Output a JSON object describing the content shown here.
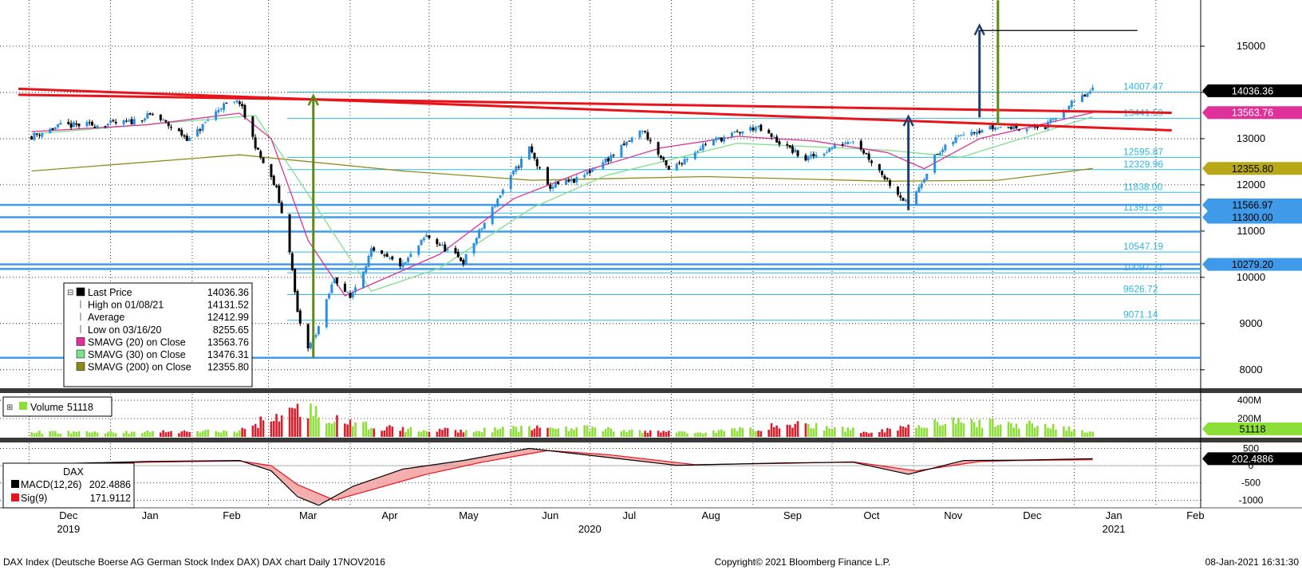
{
  "colors": {
    "background": "#ffffff",
    "grid": "#000000",
    "up_candle": "#2a8fe0",
    "down_candle": "#000000",
    "volume_up": "#8ede3a",
    "volume_down": "#d81e2a",
    "trendline_red": "#e8131b",
    "support_blue": "#3f9bea",
    "fib_blue": "#2fb8e6",
    "sma20": "#e0309a",
    "sma30": "#7ee08a",
    "sma200": "#8e8a1a",
    "arrow_green": "#5a8a10",
    "arrow_navy": "#1f3f6e",
    "macd": "#000000",
    "sig": "#e8131b",
    "macd_fill": "#f2a0a0"
  },
  "chart_data": [
    {
      "name": "price",
      "type": "candlestick",
      "y_ticks": [
        8000,
        9000,
        10000,
        11000,
        12000,
        13000,
        14000,
        15000
      ],
      "y_tick_labels": [
        "8000",
        "9000",
        "10000",
        "11000",
        "12000",
        "13000",
        "14000",
        "15000"
      ],
      "ylim": [
        7600,
        16000
      ],
      "x_months": [
        "Dec",
        "Jan",
        "Feb",
        "Mar",
        "Apr",
        "May",
        "Jun",
        "Jul",
        "Aug",
        "Sep",
        "Oct",
        "Nov",
        "Dec",
        "Jan",
        "Feb"
      ],
      "x_years": [
        "2019",
        "2020",
        "2021"
      ],
      "price_series": [
        {
          "date": "2019-12-02",
          "value": 13050
        },
        {
          "date": "2019-12-13",
          "value": 13280
        },
        {
          "date": "2019-12-27",
          "value": 13300
        },
        {
          "date": "2020-01-08",
          "value": 13350
        },
        {
          "date": "2020-01-17",
          "value": 13520
        },
        {
          "date": "2020-01-31",
          "value": 12980
        },
        {
          "date": "2020-02-12",
          "value": 13700
        },
        {
          "date": "2020-02-19",
          "value": 13790
        },
        {
          "date": "2020-02-26",
          "value": 12700
        },
        {
          "date": "2020-03-04",
          "value": 11900
        },
        {
          "date": "2020-03-09",
          "value": 10600
        },
        {
          "date": "2020-03-12",
          "value": 9200
        },
        {
          "date": "2020-03-16",
          "value": 8440
        },
        {
          "date": "2020-03-20",
          "value": 8930
        },
        {
          "date": "2020-03-26",
          "value": 10000
        },
        {
          "date": "2020-04-01",
          "value": 9550
        },
        {
          "date": "2020-04-09",
          "value": 10560
        },
        {
          "date": "2020-04-21",
          "value": 10250
        },
        {
          "date": "2020-04-30",
          "value": 10900
        },
        {
          "date": "2020-05-14",
          "value": 10340
        },
        {
          "date": "2020-05-28",
          "value": 11800
        },
        {
          "date": "2020-06-08",
          "value": 12800
        },
        {
          "date": "2020-06-15",
          "value": 11950
        },
        {
          "date": "2020-06-26",
          "value": 12100
        },
        {
          "date": "2020-07-10",
          "value": 12650
        },
        {
          "date": "2020-07-21",
          "value": 13200
        },
        {
          "date": "2020-07-31",
          "value": 12300
        },
        {
          "date": "2020-08-14",
          "value": 12900
        },
        {
          "date": "2020-09-02",
          "value": 13250
        },
        {
          "date": "2020-09-21",
          "value": 12550
        },
        {
          "date": "2020-10-09",
          "value": 13000
        },
        {
          "date": "2020-10-30",
          "value": 11550
        },
        {
          "date": "2020-11-09",
          "value": 12600
        },
        {
          "date": "2020-11-20",
          "value": 13150
        },
        {
          "date": "2020-12-03",
          "value": 13250
        },
        {
          "date": "2020-12-21",
          "value": 13250
        },
        {
          "date": "2020-12-30",
          "value": 13720
        },
        {
          "date": "2021-01-08",
          "value": 14036
        }
      ],
      "sma20": [
        {
          "date": "2019-12-02",
          "value": 13150
        },
        {
          "date": "2020-01-15",
          "value": 13300
        },
        {
          "date": "2020-02-19",
          "value": 13550
        },
        {
          "date": "2020-03-02",
          "value": 13000
        },
        {
          "date": "2020-03-16",
          "value": 10800
        },
        {
          "date": "2020-03-30",
          "value": 9600
        },
        {
          "date": "2020-04-15",
          "value": 10000
        },
        {
          "date": "2020-05-05",
          "value": 10500
        },
        {
          "date": "2020-06-02",
          "value": 11700
        },
        {
          "date": "2020-06-29",
          "value": 12300
        },
        {
          "date": "2020-07-28",
          "value": 12800
        },
        {
          "date": "2020-08-26",
          "value": 13050
        },
        {
          "date": "2020-09-24",
          "value": 12950
        },
        {
          "date": "2020-10-22",
          "value": 12700
        },
        {
          "date": "2020-11-05",
          "value": 12350
        },
        {
          "date": "2020-11-26",
          "value": 13000
        },
        {
          "date": "2021-01-08",
          "value": 13563
        }
      ],
      "sma30": [
        {
          "date": "2019-12-02",
          "value": 13100
        },
        {
          "date": "2020-02-25",
          "value": 13500
        },
        {
          "date": "2020-03-16",
          "value": 11800
        },
        {
          "date": "2020-04-09",
          "value": 9700
        },
        {
          "date": "2020-05-05",
          "value": 10200
        },
        {
          "date": "2020-06-09",
          "value": 11500
        },
        {
          "date": "2020-07-07",
          "value": 12200
        },
        {
          "date": "2020-08-26",
          "value": 12900
        },
        {
          "date": "2020-10-22",
          "value": 12750
        },
        {
          "date": "2020-11-19",
          "value": 12600
        },
        {
          "date": "2021-01-08",
          "value": 13476
        }
      ],
      "sma200": [
        {
          "date": "2019-12-02",
          "value": 12300
        },
        {
          "date": "2020-02-19",
          "value": 12650
        },
        {
          "date": "2020-04-21",
          "value": 12300
        },
        {
          "date": "2020-06-09",
          "value": 12100
        },
        {
          "date": "2020-08-14",
          "value": 12180
        },
        {
          "date": "2020-10-22",
          "value": 12080
        },
        {
          "date": "2020-12-03",
          "value": 12100
        },
        {
          "date": "2021-01-08",
          "value": 12355
        }
      ],
      "red_trendlines": [
        {
          "from": {
            "date": "2019-11-27",
            "value": 13950
          },
          "to": {
            "date": "2021-02-07",
            "value": 13560
          }
        },
        {
          "from": {
            "date": "2019-11-27",
            "value": 14080
          },
          "to": {
            "date": "2021-02-07",
            "value": 13180
          }
        }
      ],
      "blue_levels": [
        11566.97,
        11300.0,
        10990,
        10279.2,
        10180,
        8260
      ],
      "fib_levels": [
        {
          "value": 14007.47,
          "label": "14007.47"
        },
        {
          "value": 13441.59,
          "label": "13441.59"
        },
        {
          "value": 12595.87,
          "label": "12595.87"
        },
        {
          "value": 12329.96,
          "label": "12329.96"
        },
        {
          "value": 11838.0,
          "label": "11838.00"
        },
        {
          "value": 11391.28,
          "label": "11391.28"
        },
        {
          "value": 10547.19,
          "label": "10547.19"
        },
        {
          "value": 10097.31,
          "label": "10097.31"
        },
        {
          "value": 9626.72,
          "label": "9626.72"
        },
        {
          "value": 9071.14,
          "label": "9071.14"
        }
      ],
      "arrows": [
        {
          "color": "green",
          "x_date": "2020-03-18",
          "from": 8260,
          "to": 13930
        },
        {
          "color": "navy",
          "x_date": "2020-10-30",
          "from": 11450,
          "to": 13480
        },
        {
          "color": "navy",
          "x_date": "2020-11-26",
          "from": 13460,
          "to": 15450
        },
        {
          "color": "green",
          "x_date": "2020-12-03",
          "from": 13300,
          "to": 16100
        }
      ],
      "target_line": {
        "value": 15340,
        "from_date": "2020-11-26",
        "to_date": "2021-01-25"
      },
      "right_labels": [
        {
          "label": "14036.36",
          "value": 14036.36,
          "bg": "#000000",
          "fg": "#ffffff"
        },
        {
          "label": "13563.76",
          "value": 13563.76,
          "bg": "#e0309a",
          "fg": "#ffffff"
        },
        {
          "label": "12355.80",
          "value": 12355.8,
          "bg": "#b8a818",
          "fg": "#000000"
        },
        {
          "label": "11566.97",
          "value": 11566.97,
          "bg": "#3f9bea",
          "fg": "#000000"
        },
        {
          "label": "11300.00",
          "value": 11300.0,
          "bg": "#3f9bea",
          "fg": "#000000"
        },
        {
          "label": "10279.20",
          "value": 10279.2,
          "bg": "#3f9bea",
          "fg": "#000000"
        }
      ],
      "legend": [
        {
          "label": "Last Price",
          "value": "14036.36",
          "marker": "box",
          "color": "#000000"
        },
        {
          "label": "High on 01/08/21",
          "value": "14131.52",
          "marker": "high"
        },
        {
          "label": "Average",
          "value": "12412.99",
          "marker": "avg"
        },
        {
          "label": "Low on 03/16/20",
          "value": "8255.65",
          "marker": "low"
        },
        {
          "label": "SMAVG (20)  on Close",
          "value": "13563.76",
          "marker": "box",
          "color": "#e0309a"
        },
        {
          "label": "SMAVG (30)  on Close",
          "value": "13476.31",
          "marker": "box",
          "color": "#7ee08a"
        },
        {
          "label": "SMAVG (200)  on Close",
          "value": "12355.80",
          "marker": "box",
          "color": "#8e8a1a"
        }
      ]
    },
    {
      "name": "volume",
      "type": "bar",
      "y_ticks": [
        200,
        400
      ],
      "y_tick_labels": [
        "200M",
        "400M"
      ],
      "ylim": [
        0,
        470
      ],
      "legend_label": "Volume",
      "legend_value": "51118",
      "right_label": "51118",
      "right_label_bg": "#8ede3a",
      "series": [
        {
          "date": "2019-12-02",
          "value": 55
        },
        {
          "date": "2020-01-15",
          "value": 60
        },
        {
          "date": "2020-02-19",
          "value": 70
        },
        {
          "date": "2020-02-28",
          "value": 200
        },
        {
          "date": "2020-03-09",
          "value": 300
        },
        {
          "date": "2020-03-16",
          "value": 330
        },
        {
          "date": "2020-03-30",
          "value": 160
        },
        {
          "date": "2020-04-21",
          "value": 90
        },
        {
          "date": "2020-05-20",
          "value": 80
        },
        {
          "date": "2020-06-19",
          "value": 120
        },
        {
          "date": "2020-07-17",
          "value": 70
        },
        {
          "date": "2020-08-14",
          "value": 55
        },
        {
          "date": "2020-09-18",
          "value": 150
        },
        {
          "date": "2020-10-16",
          "value": 60
        },
        {
          "date": "2020-11-09",
          "value": 180
        },
        {
          "date": "2020-12-18",
          "value": 150
        },
        {
          "date": "2021-01-08",
          "value": 51
        }
      ]
    },
    {
      "name": "macd",
      "type": "line",
      "title": "DAX",
      "y_ticks": [
        -1000,
        -500,
        0,
        500
      ],
      "y_tick_labels": [
        "-1000",
        "-500",
        "0",
        "500"
      ],
      "ylim": [
        -1200,
        650
      ],
      "right_label": "202.4886",
      "macd": [
        {
          "date": "2019-12-02",
          "value": 40
        },
        {
          "date": "2020-01-15",
          "value": 120
        },
        {
          "date": "2020-02-19",
          "value": 150
        },
        {
          "date": "2020-03-02",
          "value": -150
        },
        {
          "date": "2020-03-12",
          "value": -900
        },
        {
          "date": "2020-03-20",
          "value": -1150
        },
        {
          "date": "2020-04-02",
          "value": -600
        },
        {
          "date": "2020-04-21",
          "value": -100
        },
        {
          "date": "2020-05-14",
          "value": 150
        },
        {
          "date": "2020-06-08",
          "value": 500
        },
        {
          "date": "2020-07-01",
          "value": 300
        },
        {
          "date": "2020-08-03",
          "value": 10
        },
        {
          "date": "2020-09-14",
          "value": 80
        },
        {
          "date": "2020-10-09",
          "value": 100
        },
        {
          "date": "2020-10-30",
          "value": -250
        },
        {
          "date": "2020-11-20",
          "value": 150
        },
        {
          "date": "2020-12-11",
          "value": 160
        },
        {
          "date": "2021-01-08",
          "value": 202.49
        }
      ],
      "sig": [
        {
          "date": "2019-12-02",
          "value": 30
        },
        {
          "date": "2020-01-15",
          "value": 100
        },
        {
          "date": "2020-02-19",
          "value": 140
        },
        {
          "date": "2020-03-02",
          "value": 0
        },
        {
          "date": "2020-03-12",
          "value": -550
        },
        {
          "date": "2020-03-26",
          "value": -1000
        },
        {
          "date": "2020-04-09",
          "value": -700
        },
        {
          "date": "2020-04-30",
          "value": -250
        },
        {
          "date": "2020-05-21",
          "value": 100
        },
        {
          "date": "2020-06-15",
          "value": 440
        },
        {
          "date": "2020-07-08",
          "value": 320
        },
        {
          "date": "2020-08-10",
          "value": 30
        },
        {
          "date": "2020-09-14",
          "value": 70
        },
        {
          "date": "2020-10-09",
          "value": 110
        },
        {
          "date": "2020-11-02",
          "value": -150
        },
        {
          "date": "2020-11-26",
          "value": 120
        },
        {
          "date": "2020-12-11",
          "value": 150
        },
        {
          "date": "2021-01-08",
          "value": 171.91
        }
      ],
      "legend": [
        {
          "label": "MACD(12,26)",
          "value": "202.4886",
          "color": "#000000"
        },
        {
          "label": "Sig(9)",
          "value": "171.9112",
          "color": "#e8131b"
        }
      ]
    }
  ],
  "footer": {
    "left": "DAX Index (Deutsche Boerse AG German Stock Index DAX) DAX chart  Daily 17NOV2016",
    "center": "Copyright© 2021 Bloomberg Finance L.P.",
    "right": "08-Jan-2021 16:31:30"
  }
}
